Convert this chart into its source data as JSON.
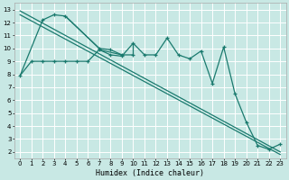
{
  "xlabel": "Humidex (Indice chaleur)",
  "bg_color": "#c8e8e4",
  "grid_color": "#ffffff",
  "line_color": "#1a7a6e",
  "xlim": [
    -0.5,
    23.5
  ],
  "ylim": [
    1.5,
    13.5
  ],
  "xticks": [
    0,
    1,
    2,
    3,
    4,
    5,
    6,
    7,
    8,
    9,
    10,
    11,
    12,
    13,
    14,
    15,
    16,
    17,
    18,
    19,
    20,
    21,
    22,
    23
  ],
  "yticks": [
    2,
    3,
    4,
    5,
    6,
    7,
    8,
    9,
    10,
    11,
    12,
    13
  ],
  "lower_series": {
    "x": [
      0,
      1,
      2,
      3,
      4,
      5,
      6,
      7,
      8,
      9,
      10,
      11,
      12,
      13,
      14,
      15,
      16,
      17,
      18,
      19,
      20,
      21,
      22,
      23
    ],
    "y": [
      7.9,
      9.0,
      9.0,
      9.0,
      9.0,
      9.0,
      9.0,
      9.9,
      9.5,
      9.4,
      10.4,
      9.5,
      9.5,
      10.8,
      9.5,
      9.2,
      9.8,
      7.3,
      10.1,
      6.5,
      4.3,
      2.5,
      2.2,
      2.6
    ]
  },
  "upper_series": {
    "x": [
      2,
      3,
      4,
      7,
      8,
      9,
      10
    ],
    "y": [
      12.2,
      12.6,
      12.5,
      10.0,
      9.9,
      9.5,
      9.5
    ]
  },
  "connect_lines": [
    {
      "x": [
        0,
        2
      ],
      "y": [
        7.9,
        12.2
      ]
    },
    {
      "x": [
        4,
        7
      ],
      "y": [
        12.5,
        10.0
      ]
    },
    {
      "x": [
        7,
        9
      ],
      "y": [
        9.9,
        9.5
      ]
    },
    {
      "x": [
        10,
        10
      ],
      "y": [
        9.5,
        10.4
      ]
    }
  ],
  "reg1": {
    "x": [
      0,
      23
    ],
    "y": [
      12.9,
      2.0
    ]
  },
  "reg2": {
    "x": [
      0,
      23
    ],
    "y": [
      12.6,
      1.8
    ]
  }
}
